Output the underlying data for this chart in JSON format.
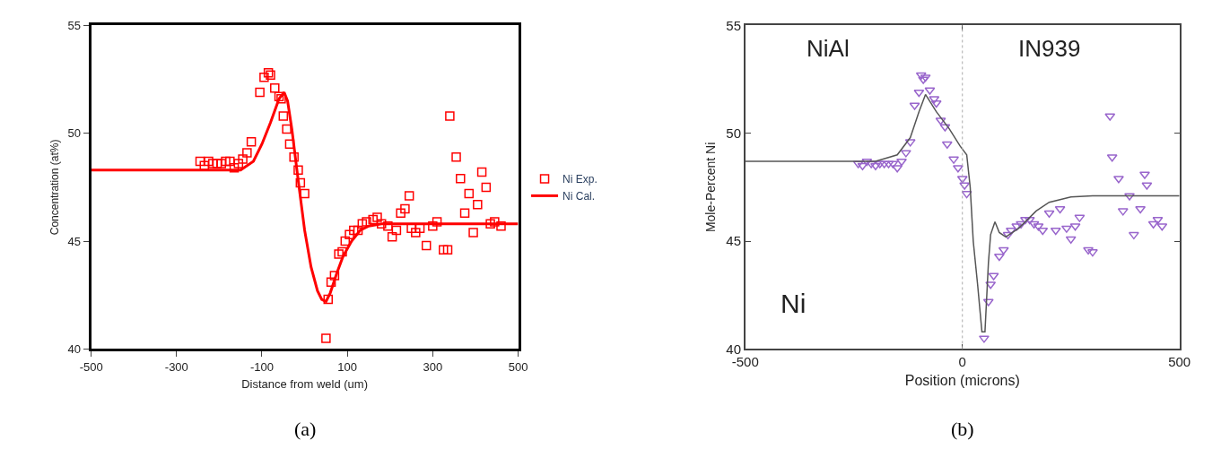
{
  "chart_data": [
    {
      "type": "scatter",
      "title": "(a)",
      "xlabel": "Distance from weld (um)",
      "ylabel": "Concentration (at%)",
      "xlim": [
        -500,
        500
      ],
      "xticks": [
        -500,
        -300,
        -100,
        100,
        300,
        500
      ],
      "ylim": [
        40,
        55
      ],
      "yticks": [
        40,
        45,
        50,
        55
      ],
      "legend": "right",
      "series": [
        {
          "name": "Ni Exp.",
          "marker": "square",
          "color": "#ff0000",
          "x": [
            -245,
            -235,
            -225,
            -215,
            -205,
            -195,
            -185,
            -175,
            -165,
            -155,
            -145,
            -135,
            -125,
            -105,
            -95,
            -85,
            -80,
            -70,
            -60,
            -55,
            -50,
            -42,
            -35,
            -25,
            -15,
            -10,
            0,
            50,
            55,
            62,
            70,
            80,
            88,
            95,
            105,
            115,
            125,
            135,
            145,
            160,
            170,
            180,
            195,
            205,
            215,
            225,
            235,
            245,
            250,
            260,
            270,
            285,
            300,
            310,
            325,
            335,
            340,
            355,
            365,
            375,
            385,
            395,
            405,
            415,
            425,
            435,
            445,
            460
          ],
          "values": [
            48.7,
            48.5,
            48.7,
            48.6,
            48.6,
            48.6,
            48.7,
            48.7,
            48.4,
            48.6,
            48.8,
            49.1,
            49.6,
            51.9,
            52.6,
            52.8,
            52.7,
            52.1,
            51.7,
            51.6,
            50.8,
            50.2,
            49.5,
            48.9,
            48.3,
            47.7,
            47.2,
            40.5,
            42.3,
            43.1,
            43.4,
            44.4,
            44.5,
            45.0,
            45.3,
            45.5,
            45.5,
            45.8,
            45.9,
            46.0,
            46.1,
            45.8,
            45.7,
            45.2,
            45.5,
            46.3,
            46.5,
            47.1,
            45.6,
            45.4,
            45.6,
            44.8,
            45.7,
            45.9,
            44.6,
            44.6,
            50.8,
            48.9,
            47.9,
            46.3,
            47.2,
            45.4,
            46.7,
            48.2,
            47.5,
            45.8,
            45.9,
            45.7
          ]
        },
        {
          "name": "Ni Cal.",
          "type": "line",
          "marker": "none",
          "line_style": "solid",
          "color": "#ff0000",
          "x": [
            -500,
            -150,
            -120,
            -100,
            -80,
            -60,
            -48,
            -40,
            -30,
            -15,
            0,
            15,
            30,
            40,
            50,
            60,
            75,
            90,
            110,
            130,
            150,
            180,
            250,
            500
          ],
          "values": [
            48.3,
            48.3,
            48.7,
            49.5,
            50.5,
            51.6,
            51.9,
            51.5,
            50.2,
            47.8,
            45.5,
            43.8,
            42.7,
            42.3,
            42.2,
            42.6,
            43.5,
            44.3,
            45.0,
            45.5,
            45.7,
            45.8,
            45.8,
            45.8
          ]
        }
      ]
    },
    {
      "type": "scatter",
      "title": "(b)",
      "xlabel": "Position (microns)",
      "ylabel": "Mole-Percent Ni",
      "xlim": [
        -500,
        500
      ],
      "xticks": [
        -500,
        0,
        500
      ],
      "ylim": [
        40,
        55
      ],
      "yticks": [
        40,
        45,
        50,
        55
      ],
      "legend": false,
      "annotations": [
        "NiAl",
        "IN939",
        "Ni"
      ],
      "ref_lines": [
        {
          "axis": "x",
          "value": 0,
          "label": null,
          "color": "#aaaaaa",
          "line_style": "dotted"
        }
      ],
      "series": [
        {
          "marker": "triangle",
          "color": "#9966cc",
          "x": [
            -240,
            -230,
            -220,
            -210,
            -200,
            -190,
            -180,
            -170,
            -160,
            -150,
            -140,
            -130,
            -120,
            -110,
            -100,
            -95,
            -90,
            -85,
            -75,
            -65,
            -60,
            -50,
            -40,
            -35,
            -20,
            -10,
            0,
            5,
            10,
            50,
            60,
            65,
            72,
            85,
            95,
            105,
            112,
            125,
            135,
            145,
            155,
            165,
            175,
            185,
            200,
            215,
            225,
            240,
            250,
            260,
            270,
            290,
            300,
            340,
            345,
            360,
            370,
            385,
            395,
            410,
            420,
            425,
            440,
            450,
            460
          ],
          "values": [
            48.6,
            48.5,
            48.7,
            48.6,
            48.5,
            48.6,
            48.6,
            48.6,
            48.6,
            48.4,
            48.7,
            49.1,
            49.6,
            51.3,
            51.9,
            52.7,
            52.5,
            52.6,
            52.0,
            51.6,
            51.4,
            50.6,
            50.3,
            49.5,
            48.8,
            48.4,
            47.9,
            47.6,
            47.2,
            40.5,
            42.2,
            43.0,
            43.4,
            44.3,
            44.6,
            45.3,
            45.5,
            45.7,
            45.8,
            46.0,
            46.0,
            45.8,
            45.7,
            45.5,
            46.3,
            45.5,
            46.5,
            45.6,
            45.1,
            45.7,
            46.1,
            44.6,
            44.5,
            50.8,
            48.9,
            47.9,
            46.4,
            47.1,
            45.3,
            46.5,
            48.1,
            47.6,
            45.8,
            46.0,
            45.7
          ]
        },
        {
          "type": "line",
          "marker": "none",
          "line_style": "solid",
          "color": "#555555",
          "x": [
            -500,
            -200,
            -150,
            -120,
            -100,
            -85,
            -60,
            -30,
            -5,
            10,
            18,
            25,
            35,
            45,
            52,
            60,
            65,
            75,
            85,
            100,
            130,
            170,
            200,
            250,
            300,
            500
          ],
          "values": [
            48.7,
            48.7,
            49.0,
            49.8,
            51.0,
            51.8,
            51.0,
            50.2,
            49.4,
            49.0,
            47.5,
            45.0,
            43.0,
            40.8,
            40.8,
            44.0,
            45.3,
            45.9,
            45.4,
            45.2,
            45.6,
            46.4,
            46.8,
            47.05,
            47.1,
            47.1
          ]
        }
      ]
    }
  ]
}
